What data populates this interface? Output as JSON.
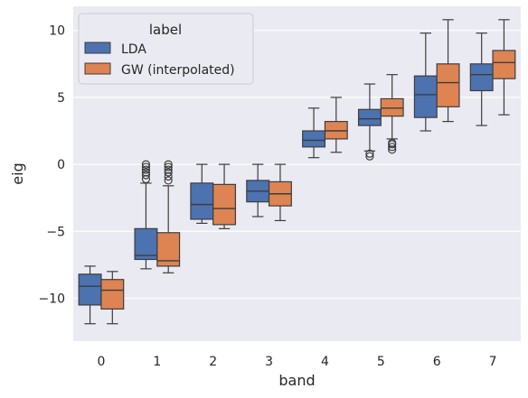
{
  "chart_data": {
    "type": "boxplot",
    "xlabel": "band",
    "ylabel": "eig",
    "ylim": [
      -13.2,
      11.8
    ],
    "yticks": [
      -10,
      -5,
      0,
      5,
      10
    ],
    "ytick_labels": [
      "−10",
      "−5",
      "0",
      "5",
      "10"
    ],
    "categories": [
      "0",
      "1",
      "2",
      "3",
      "4",
      "5",
      "6",
      "7"
    ],
    "grid": true,
    "legend": {
      "title": "label",
      "placement": "top-left"
    },
    "series": [
      {
        "name": "LDA",
        "color": "#4c72b0",
        "boxes": [
          {
            "whislo": -11.9,
            "q1": -10.5,
            "med": -9.1,
            "q3": -8.2,
            "whishi": -7.6,
            "fliers": []
          },
          {
            "whislo": -7.8,
            "q1": -7.1,
            "med": -6.8,
            "q3": -4.8,
            "whishi": -1.4,
            "fliers": [
              -1.1,
              -0.8,
              -0.6,
              -0.4,
              -0.2,
              0.0
            ]
          },
          {
            "whislo": -4.4,
            "q1": -4.1,
            "med": -3.0,
            "q3": -1.4,
            "whishi": 0.0,
            "fliers": []
          },
          {
            "whislo": -3.9,
            "q1": -2.8,
            "med": -2.0,
            "q3": -1.2,
            "whishi": 0.0,
            "fliers": []
          },
          {
            "whislo": 0.5,
            "q1": 1.3,
            "med": 1.8,
            "q3": 2.5,
            "whishi": 4.2,
            "fliers": []
          },
          {
            "whislo": 1.0,
            "q1": 2.9,
            "med": 3.4,
            "q3": 4.1,
            "whishi": 6.0,
            "fliers": [
              0.6,
              0.8
            ]
          },
          {
            "whislo": 2.5,
            "q1": 3.5,
            "med": 5.2,
            "q3": 6.6,
            "whishi": 9.8,
            "fliers": []
          },
          {
            "whislo": 2.9,
            "q1": 5.5,
            "med": 6.7,
            "q3": 7.5,
            "whishi": 9.8,
            "fliers": []
          }
        ]
      },
      {
        "name": "GW (interpolated)",
        "color": "#dd8452",
        "boxes": [
          {
            "whislo": -11.9,
            "q1": -10.8,
            "med": -9.4,
            "q3": -8.6,
            "whishi": -8.0,
            "fliers": []
          },
          {
            "whislo": -8.1,
            "q1": -7.6,
            "med": -7.2,
            "q3": -5.1,
            "whishi": -1.6,
            "fliers": [
              -1.2,
              -0.9,
              -0.6,
              -0.4,
              -0.2,
              0.0
            ]
          },
          {
            "whislo": -4.8,
            "q1": -4.5,
            "med": -3.3,
            "q3": -1.5,
            "whishi": 0.0,
            "fliers": []
          },
          {
            "whislo": -4.2,
            "q1": -3.1,
            "med": -2.2,
            "q3": -1.3,
            "whishi": 0.0,
            "fliers": []
          },
          {
            "whislo": 0.9,
            "q1": 1.9,
            "med": 2.5,
            "q3": 3.2,
            "whishi": 5.0,
            "fliers": []
          },
          {
            "whislo": 1.9,
            "q1": 3.6,
            "med": 4.2,
            "q3": 4.9,
            "whishi": 6.7,
            "fliers": [
              1.1,
              1.3,
              1.5,
              1.6
            ]
          },
          {
            "whislo": 3.2,
            "q1": 4.3,
            "med": 6.1,
            "q3": 7.5,
            "whishi": 10.8,
            "fliers": []
          },
          {
            "whislo": 3.7,
            "q1": 6.4,
            "med": 7.6,
            "q3": 8.5,
            "whishi": 10.8,
            "fliers": []
          }
        ]
      }
    ]
  },
  "style": {
    "plot_background": "#eaeaf2",
    "grid_color": "#ffffff",
    "line_color": "#3d3d3d"
  }
}
